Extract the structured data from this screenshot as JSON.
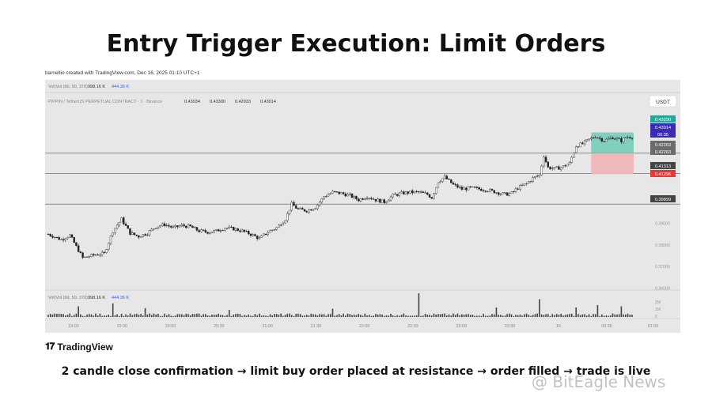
{
  "title": "Entry Trigger Execution: Limit Orders",
  "credit": "barnellio created with TradingView.com, Dec 16, 2025 01:10 UTC+1",
  "chart_header": {
    "vol_label": "Vol(Vol (60, 50, 370)",
    "vol_value1": "998.16 K",
    "vol_value2": "444.36 K",
    "symbol_line": "PIPPIN / TetherUS PERPETUAL CONTRACT · 1 · Binance",
    "ohlc": [
      "0.43034",
      "0.43300",
      "0.42933",
      "0.43014"
    ]
  },
  "currency_badge": "USDT",
  "price_labels": [
    {
      "value": "0.43230",
      "color": "#26a69a"
    },
    {
      "value": "0.43014",
      "color": "#3a2bb5"
    },
    {
      "value": "00:35",
      "color": "#3a2bb5"
    },
    {
      "value": "0.42263",
      "color": "#6b6b6b"
    },
    {
      "value": "0.42263",
      "color": "#6b6b6b"
    },
    {
      "value": "0.41313",
      "color": "#444444"
    },
    {
      "value": "0.41296",
      "color": "#e53935"
    },
    {
      "value": "0.39899",
      "color": "#444444"
    }
  ],
  "tv_logo_text": "TradingView",
  "caption": "2 candle close confirmation → limit buy order placed at resistance → order filled → trade is live",
  "watermark": "@ BitEagle News",
  "colors": {
    "panel": "#e7e7e7",
    "candle": "#222222",
    "profit_zone": "#5fc8b0",
    "loss_zone": "#f2b3b7"
  },
  "chart_data": {
    "type": "candlestick",
    "title": "",
    "y_axis_ticks": [
      "0.39000",
      "0.38000",
      "0.37000",
      "0.36000"
    ],
    "x_tick_labels": [
      "19:00",
      "19:30",
      "20:00",
      "20:30",
      "21:00",
      "21:30",
      "22:00",
      "22:30",
      "23:00",
      "23:30",
      "16",
      "00:30",
      "01:00"
    ],
    "ylim": [
      0.3605,
      0.4435
    ],
    "levels": [
      {
        "price": 0.42263
      },
      {
        "price": 0.41313
      },
      {
        "price": 0.39899
      }
    ],
    "position": {
      "entry": 0.42263,
      "take_profit": 0.4323,
      "stop_loss": 0.41296
    },
    "last_price": 0.43014,
    "close_path": [
      [
        0,
        0.385
      ],
      [
        6,
        0.3825
      ],
      [
        10,
        0.3845
      ],
      [
        14,
        0.3775
      ],
      [
        16,
        0.374
      ],
      [
        22,
        0.3755
      ],
      [
        26,
        0.376
      ],
      [
        30,
        0.3865
      ],
      [
        34,
        0.392
      ],
      [
        38,
        0.3855
      ],
      [
        42,
        0.384
      ],
      [
        46,
        0.3855
      ],
      [
        50,
        0.3885
      ],
      [
        54,
        0.3895
      ],
      [
        58,
        0.388
      ],
      [
        62,
        0.389
      ],
      [
        66,
        0.3885
      ],
      [
        70,
        0.3865
      ],
      [
        74,
        0.386
      ],
      [
        78,
        0.3865
      ],
      [
        82,
        0.388
      ],
      [
        86,
        0.3875
      ],
      [
        90,
        0.3865
      ],
      [
        94,
        0.385
      ],
      [
        98,
        0.383
      ],
      [
        102,
        0.386
      ],
      [
        106,
        0.388
      ],
      [
        110,
        0.392
      ],
      [
        113,
        0.399
      ],
      [
        116,
        0.3965
      ],
      [
        120,
        0.396
      ],
      [
        124,
        0.3975
      ],
      [
        128,
        0.4025
      ],
      [
        132,
        0.4045
      ],
      [
        136,
        0.404
      ],
      [
        140,
        0.403
      ],
      [
        144,
        0.401
      ],
      [
        148,
        0.4025
      ],
      [
        152,
        0.401
      ],
      [
        156,
        0.4
      ],
      [
        160,
        0.403
      ],
      [
        164,
        0.404
      ],
      [
        168,
        0.4045
      ],
      [
        172,
        0.4045
      ],
      [
        176,
        0.4035
      ],
      [
        178,
        0.402
      ],
      [
        181,
        0.4095
      ],
      [
        184,
        0.4115
      ],
      [
        188,
        0.408
      ],
      [
        192,
        0.406
      ],
      [
        196,
        0.4065
      ],
      [
        200,
        0.406
      ],
      [
        204,
        0.4055
      ],
      [
        208,
        0.4045
      ],
      [
        212,
        0.4035
      ],
      [
        215,
        0.404
      ],
      [
        218,
        0.4065
      ],
      [
        222,
        0.4085
      ],
      [
        225,
        0.411
      ],
      [
        228,
        0.4125
      ],
      [
        230,
        0.4215
      ],
      [
        232,
        0.416
      ],
      [
        235,
        0.4155
      ],
      [
        238,
        0.416
      ],
      [
        242,
        0.418
      ],
      [
        245,
        0.426
      ],
      [
        248,
        0.427
      ],
      [
        251,
        0.429
      ],
      [
        254,
        0.4305
      ],
      [
        258,
        0.4285
      ],
      [
        262,
        0.43
      ],
      [
        266,
        0.4285
      ],
      [
        268,
        0.43
      ],
      [
        271,
        0.4303
      ]
    ],
    "volume_spikes": [
      [
        14,
        180
      ],
      [
        30,
        230
      ],
      [
        45,
        150
      ],
      [
        84,
        120
      ],
      [
        132,
        140
      ],
      [
        172,
        400
      ],
      [
        208,
        160
      ],
      [
        228,
        300
      ],
      [
        245,
        160
      ],
      [
        255,
        200
      ],
      [
        266,
        180
      ]
    ],
    "volume_ticks": [
      "2M",
      "1M",
      "0"
    ]
  }
}
